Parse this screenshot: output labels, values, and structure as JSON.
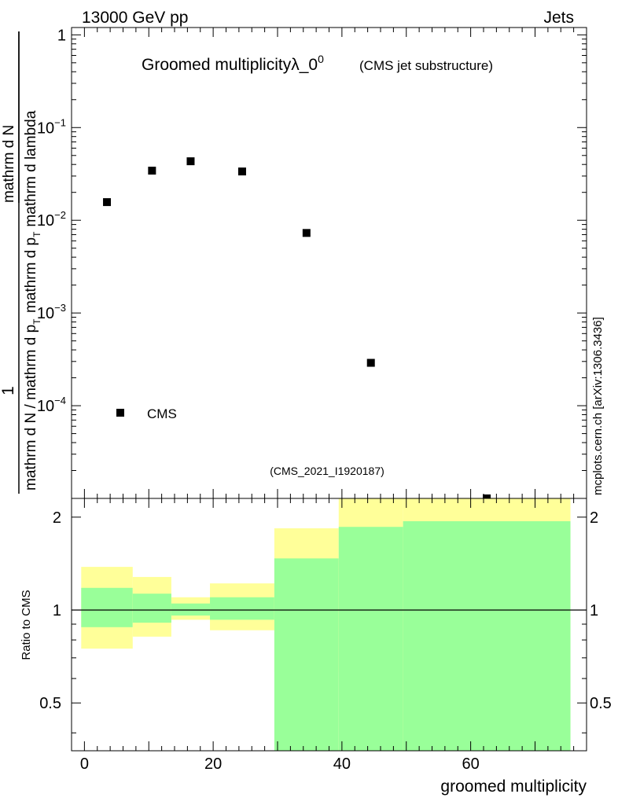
{
  "header": {
    "energy_label": "13000 GeV pp",
    "process_label": "Jets"
  },
  "side_label": "mcplots.cern.ch [arXiv:1306.3436]",
  "chart_data": [
    {
      "type": "scatter",
      "title_main": "Groomed multiplicity",
      "title_symbol": "λ_0",
      "title_superscript": "0",
      "title_suffix": "(CMS jet substructure)",
      "analysis_id": "(CMS_2021_I1920187)",
      "ylabel_parts": [
        "1",
        "mathrm d N / mathrm d p",
        "T",
        "mathrm d N",
        "mathrm d p",
        "T",
        "mathrm d lambda"
      ],
      "ylabel_fraction": {
        "numerator": "1",
        "denominator": "mathrm d N / mathrm d p"
      },
      "ylabel_right": {
        "numerator": "mathrm d",
        "numerator2": "N",
        "denominator": "mathrm d p",
        "denominator2": "mathrm d lambda"
      },
      "yscale": "log",
      "ylim": [
        1e-05,
        1.2
      ],
      "xlim": [
        -2,
        78
      ],
      "y_ticks": [
        {
          "value": 1,
          "label": "1",
          "exp": ""
        },
        {
          "value": 0.1,
          "label": "10",
          "exp": "−1"
        },
        {
          "value": 0.01,
          "label": "10",
          "exp": "−2"
        },
        {
          "value": 0.001,
          "label": "10",
          "exp": "−3"
        },
        {
          "value": 0.0001,
          "label": "10",
          "exp": "−4"
        }
      ],
      "series": [
        {
          "name": "CMS",
          "marker": "square",
          "color": "#000000",
          "x": [
            3.5,
            10.5,
            16.5,
            24.5,
            34.5,
            44.5,
            62.5
          ],
          "y": [
            0.0157,
            0.0343,
            0.0433,
            0.0336,
            0.0073,
            0.00029,
            1e-05
          ]
        }
      ],
      "legend": {
        "position": "bottom-left",
        "entries": [
          "CMS"
        ]
      }
    },
    {
      "type": "area",
      "ylabel": "Ratio to CMS",
      "xlabel": "groomed multiplicity",
      "yscale": "log",
      "ylim": [
        0.35,
        2.3
      ],
      "xlim": [
        -2,
        78
      ],
      "x_ticks": [
        {
          "value": 0,
          "label": "0"
        },
        {
          "value": 20,
          "label": "20"
        },
        {
          "value": 40,
          "label": "40"
        },
        {
          "value": 60,
          "label": "60"
        }
      ],
      "y_ticks": [
        {
          "value": 0.5,
          "label": "0.5"
        },
        {
          "value": 1,
          "label": "1"
        },
        {
          "value": 2,
          "label": "2"
        }
      ],
      "reference_line": 1,
      "bands": [
        {
          "x0": -0.5,
          "x1": 7.5,
          "green_lo": 0.88,
          "green_hi": 1.18,
          "yellow_lo": 0.75,
          "yellow_hi": 1.38
        },
        {
          "x0": 7.5,
          "x1": 13.5,
          "green_lo": 0.91,
          "green_hi": 1.13,
          "yellow_lo": 0.82,
          "yellow_hi": 1.28
        },
        {
          "x0": 13.5,
          "x1": 19.5,
          "green_lo": 0.96,
          "green_hi": 1.05,
          "yellow_lo": 0.93,
          "yellow_hi": 1.1
        },
        {
          "x0": 19.5,
          "x1": 29.5,
          "green_lo": 0.93,
          "green_hi": 1.1,
          "yellow_lo": 0.86,
          "yellow_hi": 1.22
        },
        {
          "x0": 29.5,
          "x1": 39.5,
          "green_lo": 0.35,
          "green_hi": 1.47,
          "yellow_lo": 0.63,
          "yellow_hi": 1.84
        },
        {
          "x0": 39.5,
          "x1": 49.5,
          "green_lo": 0.35,
          "green_hi": 1.86,
          "yellow_lo": 0.35,
          "yellow_hi": 2.3
        },
        {
          "x0": 49.5,
          "x1": 75.5,
          "green_lo": 0.35,
          "green_hi": 1.94,
          "yellow_lo": 0.35,
          "yellow_hi": 2.3
        }
      ],
      "colors": {
        "green": "#99ff99",
        "yellow": "#ffff99"
      }
    }
  ]
}
